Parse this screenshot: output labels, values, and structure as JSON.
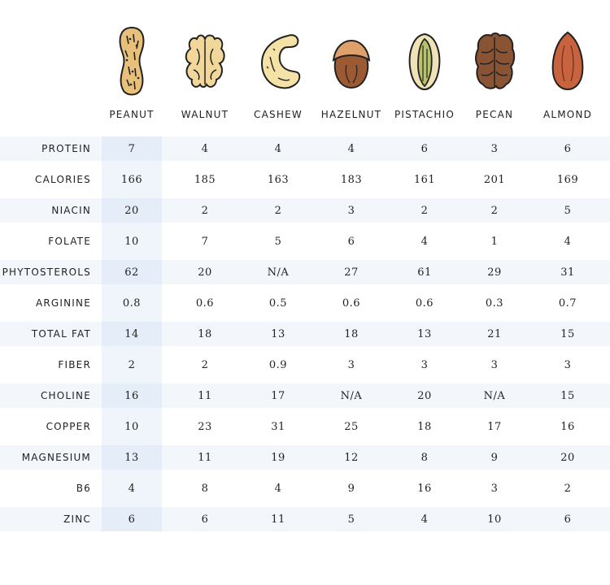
{
  "columns": [
    "PEANUT",
    "WALNUT",
    "CASHEW",
    "HAZELNUT",
    "PISTACHIO",
    "PECAN",
    "ALMOND"
  ],
  "icons": [
    "peanut-icon",
    "walnut-icon",
    "cashew-icon",
    "hazelnut-icon",
    "pistachio-icon",
    "pecan-icon",
    "almond-icon"
  ],
  "highlight_color": "#e4edf8",
  "row_stripe_color": "#f3f7fc",
  "rows": [
    {
      "label": "PROTEIN",
      "values": [
        "7",
        "4",
        "4",
        "4",
        "6",
        "3",
        "6"
      ]
    },
    {
      "label": "CALORIES",
      "values": [
        "166",
        "185",
        "163",
        "183",
        "161",
        "201",
        "169"
      ]
    },
    {
      "label": "NIACIN",
      "values": [
        "20",
        "2",
        "2",
        "3",
        "2",
        "2",
        "5"
      ]
    },
    {
      "label": "FOLATE",
      "values": [
        "10",
        "7",
        "5",
        "6",
        "4",
        "1",
        "4"
      ]
    },
    {
      "label": "PHYTOSTEROLS",
      "values": [
        "62",
        "20",
        "N/A",
        "27",
        "61",
        "29",
        "31"
      ]
    },
    {
      "label": "ARGININE",
      "values": [
        "0.8",
        "0.6",
        "0.5",
        "0.6",
        "0.6",
        "0.3",
        "0.7"
      ]
    },
    {
      "label": "TOTAL FAT",
      "values": [
        "14",
        "18",
        "13",
        "18",
        "13",
        "21",
        "15"
      ]
    },
    {
      "label": "FIBER",
      "values": [
        "2",
        "2",
        "0.9",
        "3",
        "3",
        "3",
        "3"
      ]
    },
    {
      "label": "CHOLINE",
      "values": [
        "16",
        "11",
        "17",
        "N/A",
        "20",
        "N/A",
        "15"
      ]
    },
    {
      "label": "COPPER",
      "values": [
        "10",
        "23",
        "31",
        "25",
        "18",
        "17",
        "16"
      ]
    },
    {
      "label": "MAGNESIUM",
      "values": [
        "13",
        "11",
        "19",
        "12",
        "8",
        "9",
        "20"
      ]
    },
    {
      "label": "B6",
      "values": [
        "4",
        "8",
        "4",
        "9",
        "16",
        "3",
        "2"
      ]
    },
    {
      "label": "ZINC",
      "values": [
        "6",
        "6",
        "11",
        "5",
        "4",
        "10",
        "6"
      ]
    }
  ]
}
